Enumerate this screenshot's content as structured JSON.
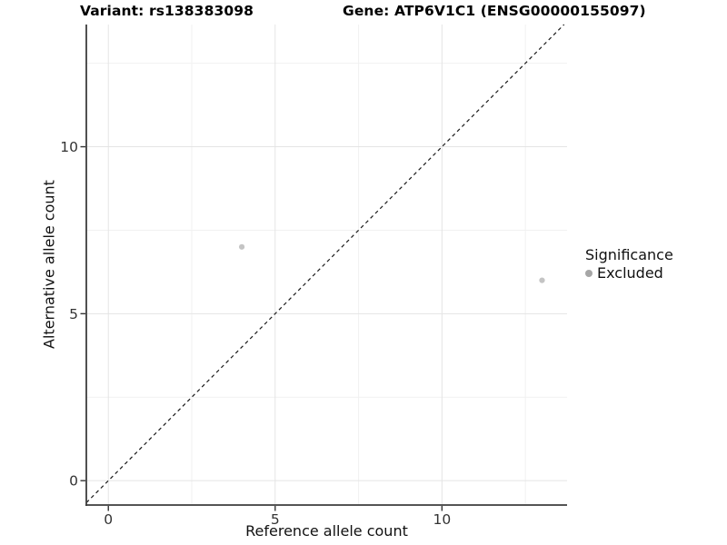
{
  "chart_data": {
    "type": "scatter",
    "title_left": "Variant: rs138383098",
    "title_right": "Gene: ATP6V1C1 (ENSG00000155097)",
    "xlabel": "Reference allele count",
    "ylabel": "Alternative allele count",
    "xlim": [
      -0.66,
      13.75
    ],
    "ylim": [
      -0.73,
      13.66
    ],
    "x_ticks": [
      0,
      5,
      10
    ],
    "y_ticks": [
      0,
      5,
      10
    ],
    "x_minor_ticks": [
      2.5,
      7.5,
      12.5
    ],
    "y_minor_ticks": [
      2.5,
      7.5,
      12.5
    ],
    "grid": "major-and-minor",
    "identity_line": {
      "equation": "y = x",
      "style": "dashed",
      "color": "#1a1a1a"
    },
    "series": [
      {
        "name": "Excluded",
        "point_color": "#c4c4c4",
        "points": [
          {
            "x": 4,
            "y": 7
          },
          {
            "x": 13,
            "y": 6
          }
        ]
      }
    ],
    "legend": {
      "title": "Significance",
      "position": "right-center",
      "items": [
        {
          "label": "Excluded",
          "color": "#a6a6a6"
        }
      ]
    },
    "colors": {
      "grid_major": "#e4e4e4",
      "grid_minor": "#f1f1f1",
      "axis_line": "#3d3d3d",
      "tick_mark": "#333333",
      "tick_label": "#333333"
    }
  }
}
